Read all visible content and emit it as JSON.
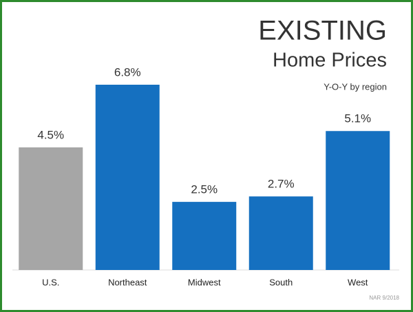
{
  "chart_data": {
    "type": "bar",
    "title": "EXISTING",
    "subtitle": "Home Prices",
    "annotation": "Y-O-Y by region",
    "source": "NAR 9/2018",
    "categories": [
      "U.S.",
      "Northeast",
      "Midwest",
      "South",
      "West"
    ],
    "values": [
      4.5,
      6.8,
      2.5,
      2.7,
      5.1
    ],
    "value_labels": [
      "4.5%",
      "6.8%",
      "2.5%",
      "2.7%",
      "5.1%"
    ],
    "colors": [
      "#a6a6a6",
      "#1570c0",
      "#1570c0",
      "#1570c0",
      "#1570c0"
    ]
  }
}
